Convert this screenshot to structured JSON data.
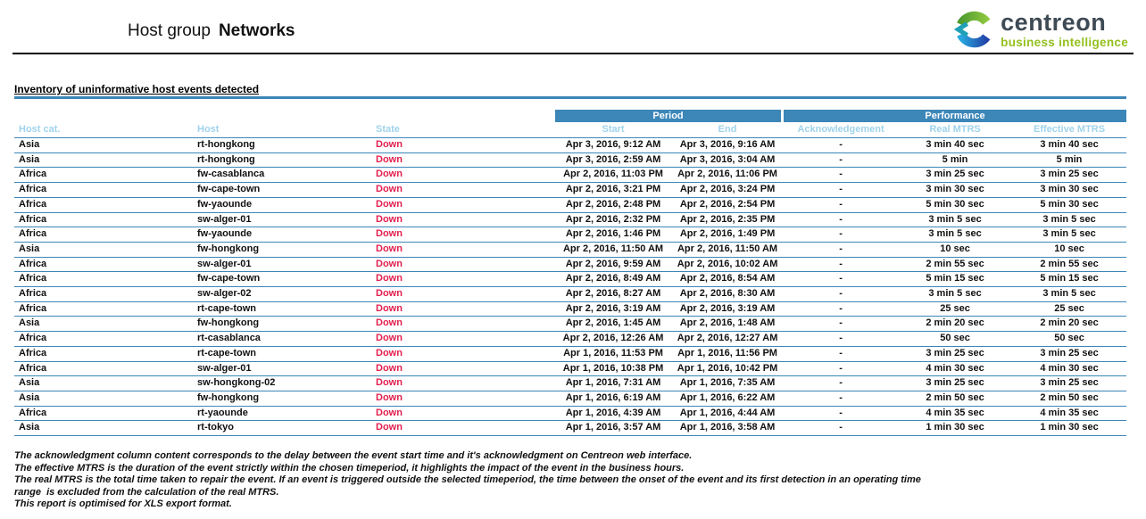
{
  "header": {
    "title_prefix": "Host group",
    "title_value": "Networks",
    "logo": {
      "name": "centreon",
      "tagline": "business intelligence"
    }
  },
  "section": {
    "heading": "Inventory of uninformative host events detected"
  },
  "table": {
    "group_headers": [
      {
        "label": "Period",
        "span": 2
      },
      {
        "label": "Performance",
        "span": 3
      }
    ],
    "columns": [
      "Host cat.",
      "Host",
      "State",
      "Start",
      "End",
      "Acknowledgement",
      "Real MTRS",
      "Effective MTRS"
    ],
    "rows": [
      [
        "Asia",
        "rt-hongkong",
        "Down",
        "Apr 3, 2016, 9:12 AM",
        "Apr 3, 2016, 9:16 AM",
        "-",
        "3 min 40 sec",
        "3 min 40 sec"
      ],
      [
        "Asia",
        "rt-hongkong",
        "Down",
        "Apr 3, 2016, 2:59 AM",
        "Apr 3, 2016, 3:04 AM",
        "-",
        "5 min",
        "5 min"
      ],
      [
        "Africa",
        "fw-casablanca",
        "Down",
        "Apr 2, 2016, 11:03 PM",
        "Apr 2, 2016, 11:06 PM",
        "-",
        "3 min 25 sec",
        "3 min 25 sec"
      ],
      [
        "Africa",
        "fw-cape-town",
        "Down",
        "Apr 2, 2016, 3:21 PM",
        "Apr 2, 2016, 3:24 PM",
        "-",
        "3 min 30 sec",
        "3 min 30 sec"
      ],
      [
        "Africa",
        "fw-yaounde",
        "Down",
        "Apr 2, 2016, 2:48 PM",
        "Apr 2, 2016, 2:54 PM",
        "-",
        "5 min 30 sec",
        "5 min 30 sec"
      ],
      [
        "Africa",
        "sw-alger-01",
        "Down",
        "Apr 2, 2016, 2:32 PM",
        "Apr 2, 2016, 2:35 PM",
        "-",
        "3 min 5 sec",
        "3 min 5 sec"
      ],
      [
        "Africa",
        "fw-yaounde",
        "Down",
        "Apr 2, 2016, 1:46 PM",
        "Apr 2, 2016, 1:49 PM",
        "-",
        "3 min 5 sec",
        "3 min 5 sec"
      ],
      [
        "Asia",
        "fw-hongkong",
        "Down",
        "Apr 2, 2016, 11:50 AM",
        "Apr 2, 2016, 11:50 AM",
        "-",
        "10 sec",
        "10 sec"
      ],
      [
        "Africa",
        "sw-alger-01",
        "Down",
        "Apr 2, 2016, 9:59 AM",
        "Apr 2, 2016, 10:02 AM",
        "-",
        "2 min 55 sec",
        "2 min 55 sec"
      ],
      [
        "Africa",
        "fw-cape-town",
        "Down",
        "Apr 2, 2016, 8:49 AM",
        "Apr 2, 2016, 8:54 AM",
        "-",
        "5 min 15 sec",
        "5 min 15 sec"
      ],
      [
        "Africa",
        "sw-alger-02",
        "Down",
        "Apr 2, 2016, 8:27 AM",
        "Apr 2, 2016, 8:30 AM",
        "-",
        "3 min 5 sec",
        "3 min 5 sec"
      ],
      [
        "Africa",
        "rt-cape-town",
        "Down",
        "Apr 2, 2016, 3:19 AM",
        "Apr 2, 2016, 3:19 AM",
        "-",
        "25 sec",
        "25 sec"
      ],
      [
        "Asia",
        "fw-hongkong",
        "Down",
        "Apr 2, 2016, 1:45 AM",
        "Apr 2, 2016, 1:48 AM",
        "-",
        "2 min 20 sec",
        "2 min 20 sec"
      ],
      [
        "Africa",
        "rt-casablanca",
        "Down",
        "Apr 2, 2016, 12:26 AM",
        "Apr 2, 2016, 12:27 AM",
        "-",
        "50 sec",
        "50 sec"
      ],
      [
        "Africa",
        "rt-cape-town",
        "Down",
        "Apr 1, 2016, 11:53 PM",
        "Apr 1, 2016, 11:56 PM",
        "-",
        "3 min 25 sec",
        "3 min 25 sec"
      ],
      [
        "Africa",
        "sw-alger-01",
        "Down",
        "Apr 1, 2016, 10:38 PM",
        "Apr 1, 2016, 10:42 PM",
        "-",
        "4 min 30 sec",
        "4 min 30 sec"
      ],
      [
        "Asia",
        "sw-hongkong-02",
        "Down",
        "Apr 1, 2016, 7:31 AM",
        "Apr 1, 2016, 7:35 AM",
        "-",
        "3 min 25 sec",
        "3 min 25 sec"
      ],
      [
        "Asia",
        "fw-hongkong",
        "Down",
        "Apr 1, 2016, 6:19 AM",
        "Apr 1, 2016, 6:22 AM",
        "-",
        "2 min 50 sec",
        "2 min 50 sec"
      ],
      [
        "Africa",
        "rt-yaounde",
        "Down",
        "Apr 1, 2016, 4:39 AM",
        "Apr 1, 2016, 4:44 AM",
        "-",
        "4 min 35 sec",
        "4 min 35 sec"
      ],
      [
        "Asia",
        "rt-tokyo",
        "Down",
        "Apr 1, 2016, 3:57 AM",
        "Apr 1, 2016, 3:58 AM",
        "-",
        "1 min 30 sec",
        "1 min 30 sec"
      ]
    ]
  },
  "footnotes": [
    "The acknowledgment column content corresponds to the delay between the event start time and it's acknowledgment on Centreon web interface.",
    "The effective MTRS is the duration of the event strictly within the chosen timeperiod, it highlights the impact of the event in the business hours.",
    "The real MTRS is the total time taken to repair the event. If an event is triggered outside the selected timeperiod, the time between the onset of the event and its first detection in an operating time",
    "range  is excluded from the calculation of the real MTRS.",
    "This report is optimised for XLS export format."
  ],
  "colors": {
    "accent_blue": "#3C86B8",
    "column_label_blue": "#A0D3EC",
    "state_down_red": "#E2204E",
    "logo_dark": "#3E4A54",
    "logo_green": "#93C01F"
  }
}
